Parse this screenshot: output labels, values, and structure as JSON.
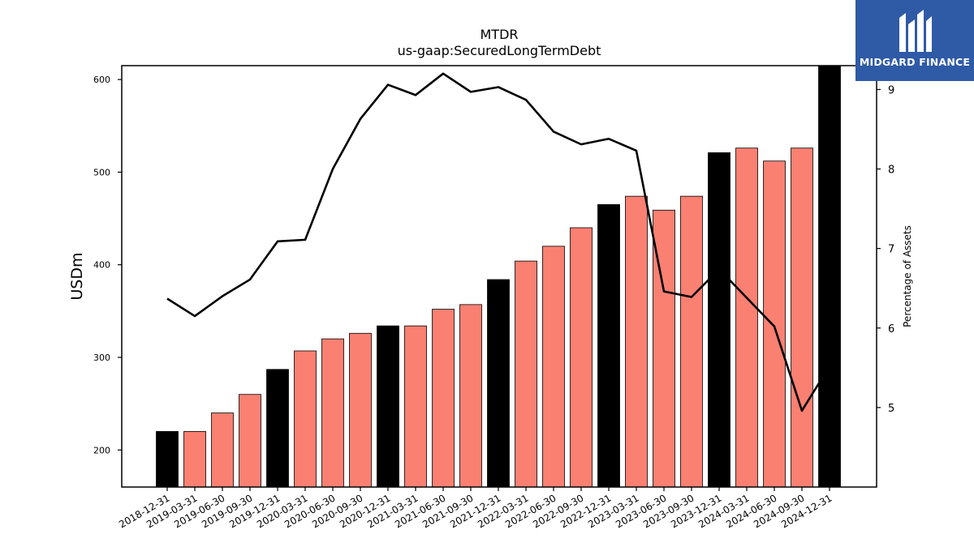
{
  "chart_data": {
    "type": "bar",
    "title": "MTDR",
    "subtitle": "us-gaap:SecuredLongTermDebt",
    "ylabel": "USDm",
    "y2label": "Percentage of Assets",
    "ylim": [
      160,
      615
    ],
    "y2lim": [
      4.0,
      9.3
    ],
    "yticks": [
      200,
      300,
      400,
      500,
      600
    ],
    "y2ticks": [
      5,
      6,
      7,
      8,
      9
    ],
    "categories": [
      "2018-12-31",
      "2019-03-31",
      "2019-06-30",
      "2019-09-30",
      "2019-12-31",
      "2020-03-31",
      "2020-06-30",
      "2020-09-30",
      "2020-12-31",
      "2021-03-31",
      "2021-06-30",
      "2021-09-30",
      "2021-12-31",
      "2022-03-31",
      "2022-06-30",
      "2022-09-30",
      "2022-12-31",
      "2023-03-31",
      "2023-06-30",
      "2023-09-30",
      "2023-12-31",
      "2024-03-31",
      "2024-06-30",
      "2024-09-30",
      "2024-12-31"
    ],
    "series": [
      {
        "type": "bar",
        "values": [
          220,
          220,
          240,
          260,
          287,
          307,
          320,
          326,
          334,
          334,
          352,
          357,
          384,
          404,
          420,
          440,
          465,
          474,
          459,
          474,
          521,
          526,
          512,
          526,
          615
        ]
      },
      {
        "type": "line",
        "axis": "right",
        "values": [
          6.37,
          6.15,
          6.4,
          6.61,
          7.09,
          7.11,
          8.0,
          8.63,
          9.06,
          8.93,
          9.2,
          8.97,
          9.03,
          8.87,
          8.47,
          8.31,
          8.38,
          8.23,
          6.46,
          6.39,
          6.74,
          6.38,
          6.02,
          4.96,
          5.52
        ]
      }
    ],
    "bar_colors": [
      "#000000",
      "#fa8072",
      "#fa8072",
      "#fa8072",
      "#000000",
      "#fa8072",
      "#fa8072",
      "#fa8072",
      "#000000",
      "#fa8072",
      "#fa8072",
      "#fa8072",
      "#000000",
      "#fa8072",
      "#fa8072",
      "#fa8072",
      "#000000",
      "#fa8072",
      "#fa8072",
      "#fa8072",
      "#000000",
      "#fa8072",
      "#fa8072",
      "#fa8072",
      "#000000"
    ],
    "line_color": "#000000",
    "grid": false,
    "legend": "none"
  },
  "logo": {
    "text": "MIDGARD FINANCE",
    "background": "#2f5aa6"
  }
}
